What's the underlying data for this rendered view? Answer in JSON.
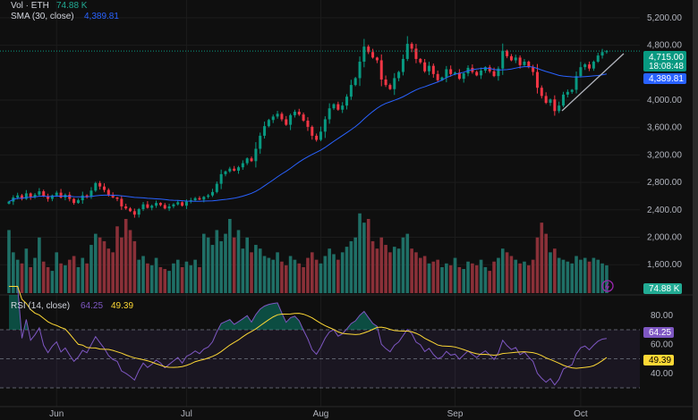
{
  "legend": {
    "vol_label": "Vol · ETH",
    "vol_value": "74.88 K",
    "sma_label": "SMA (30, close)",
    "sma_value": "4,389.81",
    "rsi_label": "RSI (14, close)",
    "rsi_value": "64.25",
    "rsi_ma_value": "49.39"
  },
  "badges": {
    "last_price": "4,715.00",
    "countdown": "18:08:48",
    "sma": "4,389.81",
    "volume": "74.88 K",
    "rsi": "64.25",
    "rsi_ma": "49.39"
  },
  "colors": {
    "up": "#089981",
    "down": "#f23645",
    "sma": "#2962ff",
    "rsi": "#7e57c2",
    "rsi_ma": "#fdd835",
    "bg": "#0f0f0f"
  },
  "chart_data": {
    "type": "candlestick",
    "symbol": "ETH",
    "price_axis": {
      "ticks": [
        "5,200.00",
        "4,800.00",
        "4,000.00",
        "3,600.00",
        "3,200.00",
        "2,800.00",
        "2,400.00",
        "2,000.00",
        "1,600.00"
      ],
      "values": [
        5200,
        4800,
        4000,
        3600,
        3200,
        2800,
        2400,
        2000,
        1600
      ]
    },
    "rsi_axis": {
      "ticks": [
        "80.00",
        "60.00",
        "40.00"
      ],
      "values": [
        80,
        60,
        40
      ],
      "bands": [
        70,
        50,
        30
      ]
    },
    "x_ticks": [
      "Jun",
      "Jul",
      "Aug",
      "Sep",
      "Oct"
    ],
    "x_tick_index": [
      11,
      41,
      72,
      103,
      132
    ],
    "closes": [
      2520,
      2580,
      2610,
      2560,
      2640,
      2590,
      2620,
      2670,
      2600,
      2560,
      2610,
      2650,
      2580,
      2620,
      2560,
      2500,
      2540,
      2610,
      2590,
      2680,
      2790,
      2740,
      2690,
      2620,
      2580,
      2560,
      2450,
      2420,
      2380,
      2330,
      2410,
      2480,
      2430,
      2460,
      2500,
      2470,
      2420,
      2450,
      2480,
      2510,
      2460,
      2520,
      2540,
      2570,
      2550,
      2590,
      2610,
      2660,
      2780,
      2920,
      2960,
      3000,
      2970,
      3020,
      3080,
      3150,
      3110,
      3290,
      3480,
      3620,
      3710,
      3760,
      3800,
      3720,
      3640,
      3780,
      3830,
      3790,
      3700,
      3610,
      3480,
      3420,
      3540,
      3720,
      3880,
      3940,
      3860,
      3920,
      4050,
      4220,
      4320,
      4560,
      4780,
      4700,
      4620,
      4580,
      4300,
      4220,
      4160,
      4320,
      4410,
      4600,
      4820,
      4750,
      4600,
      4550,
      4420,
      4500,
      4380,
      4290,
      4330,
      4450,
      4380,
      4400,
      4310,
      4390,
      4470,
      4410,
      4360,
      4430,
      4480,
      4420,
      4350,
      4460,
      4720,
      4640,
      4580,
      4620,
      4510,
      4560,
      4480,
      4410,
      4180,
      4060,
      3960,
      4010,
      3840,
      3920,
      4080,
      4120,
      4150,
      4350,
      4480,
      4520,
      4460,
      4560,
      4650,
      4700,
      4715
    ],
    "volumes_k": [
      170,
      110,
      90,
      80,
      120,
      70,
      95,
      150,
      85,
      70,
      60,
      110,
      80,
      75,
      90,
      100,
      70,
      95,
      80,
      130,
      160,
      150,
      140,
      120,
      110,
      180,
      150,
      200,
      170,
      140,
      90,
      100,
      80,
      75,
      95,
      70,
      65,
      60,
      80,
      90,
      70,
      85,
      75,
      90,
      70,
      160,
      150,
      130,
      170,
      140,
      160,
      200,
      150,
      170,
      120,
      150,
      110,
      130,
      120,
      100,
      95,
      90,
      110,
      85,
      75,
      100,
      90,
      80,
      70,
      95,
      110,
      90,
      80,
      100,
      120,
      105,
      90,
      110,
      125,
      140,
      150,
      215,
      190,
      200,
      140,
      120,
      150,
      130,
      110,
      125,
      120,
      150,
      160,
      120,
      110,
      95,
      100,
      80,
      85,
      90,
      70,
      80,
      75,
      95,
      70,
      65,
      85,
      80,
      75,
      90,
      70,
      60,
      85,
      95,
      120,
      110,
      100,
      90,
      80,
      85,
      75,
      90,
      150,
      190,
      160,
      110,
      120,
      95,
      90,
      85,
      80,
      100,
      90,
      95,
      85,
      95,
      90,
      80,
      74.88
    ],
    "sma_period": 30,
    "rsi_period": 14,
    "rsi_ma_period": 14
  }
}
